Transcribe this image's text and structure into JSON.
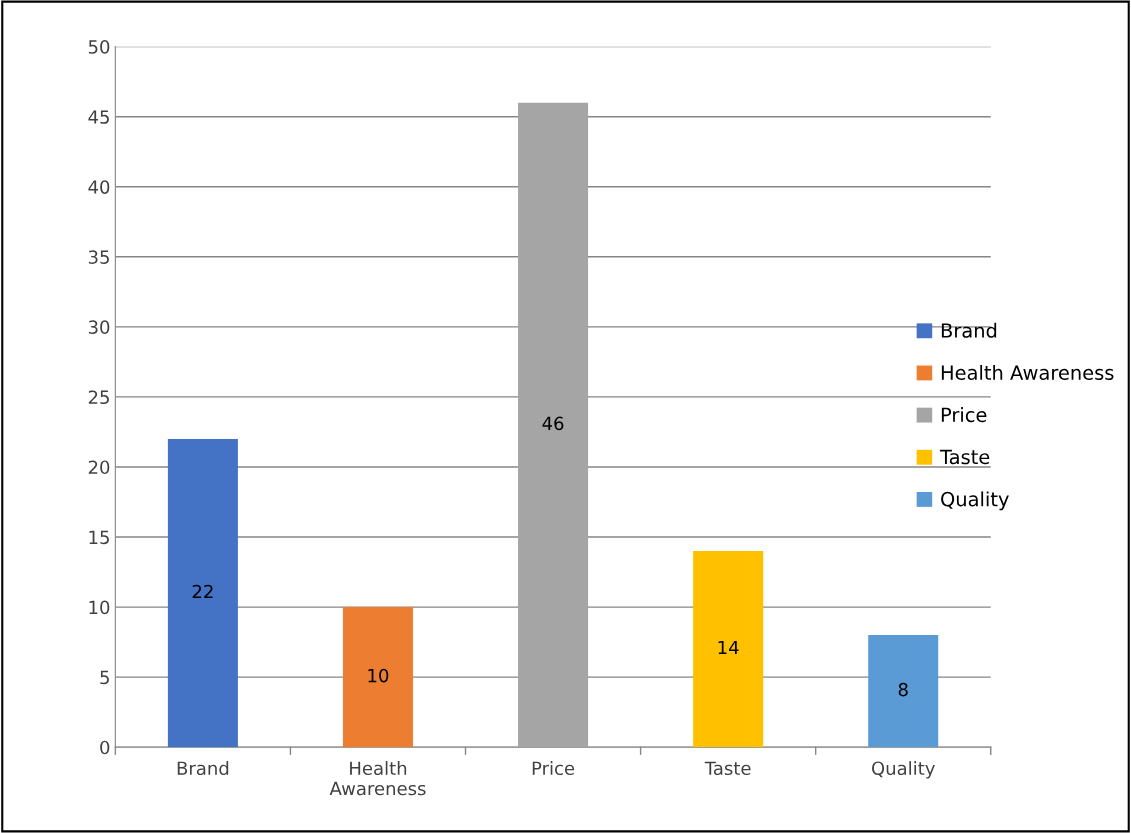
{
  "chart_data": {
    "type": "bar",
    "categories": [
      "Brand",
      "Health\nAwareness",
      "Price",
      "Taste",
      "Quality"
    ],
    "series": [
      {
        "name": "Brand",
        "color": "#4472c4",
        "values": [
          22,
          null,
          null,
          null,
          null
        ]
      },
      {
        "name": "Health Awareness",
        "color": "#ed7d31",
        "values": [
          null,
          10,
          null,
          null,
          null
        ]
      },
      {
        "name": "Price",
        "color": "#a5a5a5",
        "values": [
          null,
          null,
          46,
          null,
          null
        ]
      },
      {
        "name": "Taste",
        "color": "#ffc000",
        "values": [
          null,
          null,
          null,
          14,
          null
        ]
      },
      {
        "name": "Quality",
        "color": "#5b9bd5",
        "values": [
          null,
          null,
          null,
          null,
          8
        ]
      }
    ],
    "ylim": [
      0,
      50
    ],
    "yticks": [
      0,
      5,
      10,
      15,
      20,
      25,
      30,
      35,
      40,
      45,
      50
    ],
    "grid": "y",
    "legend": "right",
    "data_labels": true
  }
}
